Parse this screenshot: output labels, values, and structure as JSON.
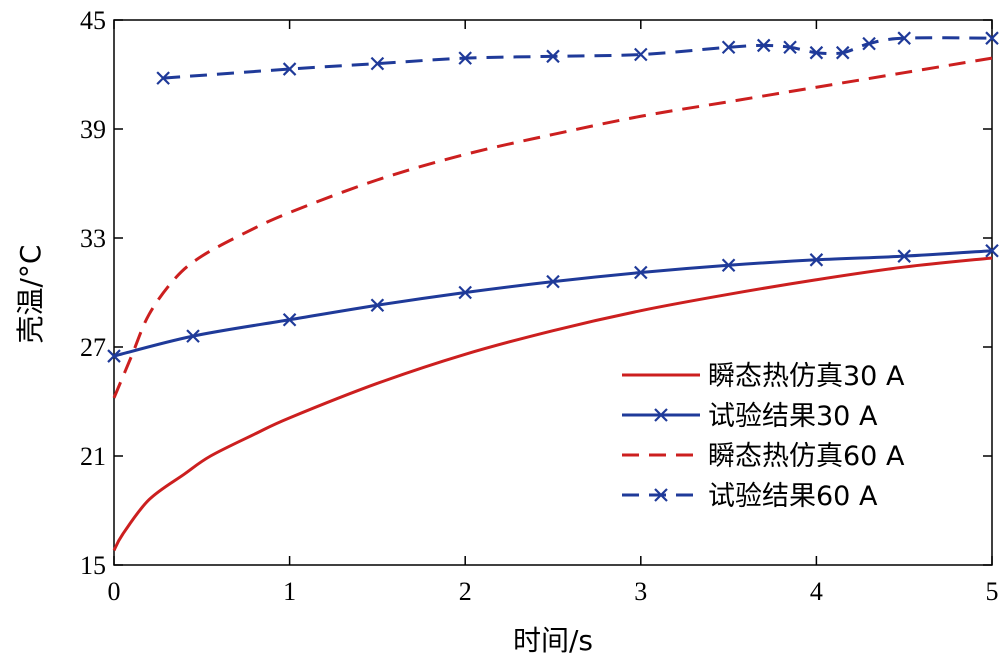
{
  "chart_data": {
    "type": "line",
    "xlabel": "时间/s",
    "ylabel": "壳温/°C",
    "xlim": [
      0,
      5
    ],
    "ylim": [
      15,
      45
    ],
    "x_ticks": [
      0,
      1,
      2,
      3,
      4,
      5
    ],
    "y_ticks": [
      15,
      21,
      27,
      33,
      39,
      45
    ],
    "x_tick_labels": [
      "0",
      "1",
      "2",
      "3",
      "4",
      "5"
    ],
    "y_tick_labels": [
      "15",
      "21",
      "27",
      "33",
      "39",
      "45"
    ],
    "grid": false,
    "legend_position": "lower-right",
    "series": [
      {
        "name": "瞬态热仿真30 A",
        "color": "#cc1f1f",
        "dash": "solid",
        "marker": "none",
        "points": [
          [
            0.0,
            15.8
          ],
          [
            0.05,
            16.7
          ],
          [
            0.2,
            18.6
          ],
          [
            0.4,
            20.0
          ],
          [
            0.55,
            21.0
          ],
          [
            0.8,
            22.2
          ],
          [
            1.0,
            23.1
          ],
          [
            1.5,
            25.0
          ],
          [
            2.0,
            26.6
          ],
          [
            2.5,
            27.9
          ],
          [
            3.0,
            29.0
          ],
          [
            3.5,
            29.9
          ],
          [
            4.0,
            30.7
          ],
          [
            4.5,
            31.4
          ],
          [
            5.0,
            31.9
          ]
        ]
      },
      {
        "name": "试验结果30 A",
        "color": "#1f3a99",
        "dash": "solid",
        "marker": "x",
        "points": [
          [
            0.0,
            26.5
          ],
          [
            0.45,
            27.6
          ],
          [
            1.0,
            28.5
          ],
          [
            1.5,
            29.3
          ],
          [
            2.0,
            30.0
          ],
          [
            2.5,
            30.6
          ],
          [
            3.0,
            31.1
          ],
          [
            3.5,
            31.5
          ],
          [
            4.0,
            31.8
          ],
          [
            4.5,
            32.0
          ],
          [
            5.0,
            32.3
          ]
        ]
      },
      {
        "name": "瞬态热仿真60 A",
        "color": "#cc1f1f",
        "dash": "dashed",
        "marker": "none",
        "points": [
          [
            0.0,
            24.2
          ],
          [
            0.1,
            26.5
          ],
          [
            0.2,
            28.8
          ],
          [
            0.35,
            30.8
          ],
          [
            0.5,
            32.0
          ],
          [
            0.75,
            33.3
          ],
          [
            1.0,
            34.4
          ],
          [
            1.5,
            36.2
          ],
          [
            2.0,
            37.6
          ],
          [
            2.5,
            38.7
          ],
          [
            3.0,
            39.7
          ],
          [
            3.5,
            40.5
          ],
          [
            4.0,
            41.3
          ],
          [
            4.5,
            42.1
          ],
          [
            5.0,
            42.9
          ]
        ]
      },
      {
        "name": "试验结果60 A",
        "color": "#1f3a99",
        "dash": "dashed",
        "marker": "x",
        "points": [
          [
            0.28,
            41.8
          ],
          [
            1.0,
            42.3
          ],
          [
            1.5,
            42.6
          ],
          [
            2.0,
            42.9
          ],
          [
            2.5,
            43.0
          ],
          [
            3.0,
            43.1
          ],
          [
            3.5,
            43.5
          ],
          [
            3.7,
            43.6
          ],
          [
            3.85,
            43.5
          ],
          [
            4.0,
            43.2
          ],
          [
            4.15,
            43.2
          ],
          [
            4.3,
            43.7
          ],
          [
            4.5,
            44.0
          ],
          [
            5.0,
            44.0
          ]
        ]
      }
    ]
  }
}
